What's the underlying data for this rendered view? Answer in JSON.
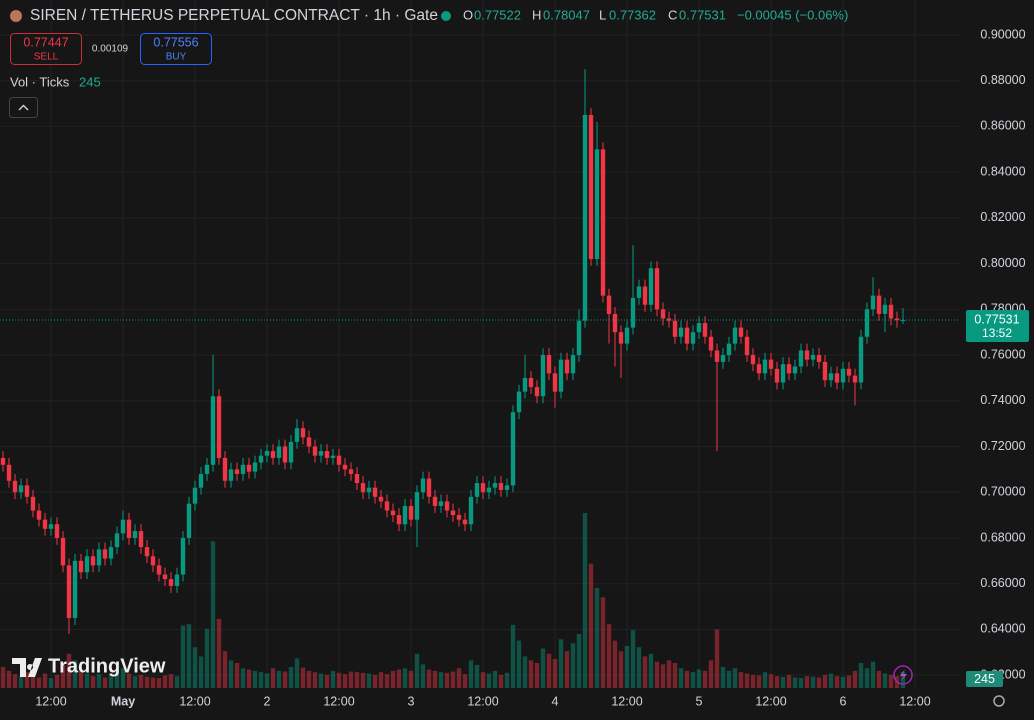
{
  "header": {
    "symbol": "SIREN / TETHERUS PERPETUAL CONTRACT · 1h · Gate",
    "open_key": "O",
    "high_key": "H",
    "low_key": "L",
    "close_key": "C",
    "change": "−0.00045 (−0.06%)"
  },
  "trade": {
    "sell_price": "0.77447",
    "sell": "SELL",
    "spread": "0.00109",
    "buy_price": "0.77556",
    "buy": "BUY"
  },
  "indicator": {
    "name": "Vol · Ticks"
  },
  "watermark": "TradingView",
  "countdown": "13:52",
  "chart_data": {
    "type": "candlestick",
    "up_color": "#089981",
    "down_color": "#f23645",
    "grid": true,
    "ylim": [
      0.6135,
      0.9153
    ],
    "yticks": [
      {
        "value": 0.62,
        "label": "0.62000"
      },
      {
        "value": 0.64,
        "label": "0.64000"
      },
      {
        "value": 0.66,
        "label": "0.66000"
      },
      {
        "value": 0.68,
        "label": "0.68000"
      },
      {
        "value": 0.7,
        "label": "0.70000"
      },
      {
        "value": 0.72,
        "label": "0.72000"
      },
      {
        "value": 0.74,
        "label": "0.74000"
      },
      {
        "value": 0.76,
        "label": "0.76000"
      },
      {
        "value": 0.78,
        "label": "0.78000"
      },
      {
        "value": 0.8,
        "label": "0.80000"
      },
      {
        "value": 0.82,
        "label": "0.82000"
      },
      {
        "value": 0.84,
        "label": "0.84000"
      },
      {
        "value": 0.86,
        "label": "0.86000"
      },
      {
        "value": 0.88,
        "label": "0.88000"
      },
      {
        "value": 0.9,
        "label": "0.90000"
      }
    ],
    "categories": [
      null,
      null,
      null,
      null,
      null,
      null,
      null,
      null,
      "12:00",
      null,
      null,
      null,
      null,
      null,
      null,
      null,
      null,
      null,
      null,
      null,
      "May",
      null,
      null,
      null,
      null,
      null,
      null,
      null,
      null,
      null,
      null,
      null,
      "12:00",
      null,
      null,
      null,
      null,
      null,
      null,
      null,
      null,
      null,
      null,
      null,
      "2",
      null,
      null,
      null,
      null,
      null,
      null,
      null,
      null,
      null,
      null,
      null,
      "12:00",
      null,
      null,
      null,
      null,
      null,
      null,
      null,
      null,
      null,
      null,
      null,
      "3",
      null,
      null,
      null,
      null,
      null,
      null,
      null,
      null,
      null,
      null,
      null,
      "12:00",
      null,
      null,
      null,
      null,
      null,
      null,
      null,
      null,
      null,
      null,
      null,
      "4",
      null,
      null,
      null,
      null,
      null,
      null,
      null,
      null,
      null,
      null,
      null,
      "12:00",
      null,
      null,
      null,
      null,
      null,
      null,
      null,
      null,
      null,
      null,
      null,
      "5",
      null,
      null,
      null,
      null,
      null,
      null,
      null,
      null,
      null,
      null,
      null,
      "12:00",
      null,
      null,
      null,
      null,
      null,
      null,
      null,
      null,
      null,
      null,
      null,
      "6",
      null,
      null,
      null,
      null,
      null,
      null,
      null,
      null,
      null,
      null,
      null,
      "12:00"
    ],
    "open": [
      0.715,
      0.712,
      0.705,
      0.7,
      0.703,
      0.698,
      0.692,
      0.688,
      0.684,
      0.686,
      0.68,
      0.668,
      0.645,
      0.67,
      0.665,
      0.672,
      0.668,
      0.675,
      0.671,
      0.676,
      0.682,
      0.688,
      0.68,
      0.683,
      0.676,
      0.672,
      0.668,
      0.664,
      0.662,
      0.659,
      0.664,
      0.68,
      0.695,
      0.702,
      0.708,
      0.712,
      0.742,
      0.715,
      0.705,
      0.71,
      0.708,
      0.712,
      0.709,
      0.713,
      0.716,
      0.718,
      0.715,
      0.72,
      0.713,
      0.722,
      0.728,
      0.724,
      0.72,
      0.716,
      0.718,
      0.715,
      0.716,
      0.712,
      0.71,
      0.708,
      0.704,
      0.7,
      0.702,
      0.698,
      0.696,
      0.692,
      0.69,
      0.686,
      0.694,
      0.688,
      0.7,
      0.706,
      0.698,
      0.694,
      0.696,
      0.692,
      0.69,
      0.688,
      0.686,
      0.698,
      0.704,
      0.7,
      0.702,
      0.704,
      0.701,
      0.703,
      0.735,
      0.744,
      0.75,
      0.746,
      0.742,
      0.76,
      0.752,
      0.744,
      0.758,
      0.752,
      0.76,
      0.775,
      0.865,
      0.802,
      0.85,
      0.786,
      0.778,
      0.77,
      0.765,
      0.772,
      0.785,
      0.79,
      0.782,
      0.798,
      0.78,
      0.776,
      0.775,
      0.768,
      0.772,
      0.765,
      0.77,
      0.774,
      0.768,
      0.762,
      0.757,
      0.76,
      0.765,
      0.772,
      0.768,
      0.76,
      0.756,
      0.752,
      0.758,
      0.754,
      0.748,
      0.756,
      0.752,
      0.755,
      0.762,
      0.758,
      0.76,
      0.757,
      0.749,
      0.752,
      0.748,
      0.754,
      0.751,
      0.748,
      0.768,
      0.78,
      0.786,
      0.778,
      0.782,
      0.776,
      0.77522,
      null,
      null
    ],
    "high": [
      0.718,
      0.715,
      0.708,
      0.706,
      0.706,
      0.701,
      0.695,
      0.691,
      0.689,
      0.689,
      0.683,
      0.671,
      0.673,
      0.673,
      0.675,
      0.675,
      0.678,
      0.678,
      0.679,
      0.685,
      0.692,
      0.691,
      0.686,
      0.686,
      0.679,
      0.675,
      0.671,
      0.667,
      0.665,
      0.667,
      0.683,
      0.698,
      0.705,
      0.711,
      0.715,
      0.76,
      0.745,
      0.718,
      0.713,
      0.713,
      0.715,
      0.715,
      0.716,
      0.719,
      0.721,
      0.721,
      0.723,
      0.723,
      0.725,
      0.732,
      0.731,
      0.727,
      0.723,
      0.721,
      0.721,
      0.719,
      0.719,
      0.715,
      0.713,
      0.711,
      0.707,
      0.705,
      0.705,
      0.701,
      0.699,
      0.695,
      0.693,
      0.697,
      0.697,
      0.703,
      0.709,
      0.709,
      0.701,
      0.699,
      0.699,
      0.695,
      0.693,
      0.691,
      0.701,
      0.707,
      0.707,
      0.705,
      0.707,
      0.707,
      0.706,
      0.738,
      0.747,
      0.76,
      0.753,
      0.749,
      0.763,
      0.763,
      0.755,
      0.761,
      0.761,
      0.763,
      0.78,
      0.885,
      0.868,
      0.862,
      0.853,
      0.789,
      0.781,
      0.773,
      0.775,
      0.808,
      0.793,
      0.793,
      0.801,
      0.801,
      0.783,
      0.779,
      0.778,
      0.775,
      0.775,
      0.773,
      0.777,
      0.777,
      0.771,
      0.765,
      0.763,
      0.768,
      0.775,
      0.775,
      0.771,
      0.763,
      0.759,
      0.761,
      0.761,
      0.757,
      0.759,
      0.759,
      0.758,
      0.765,
      0.765,
      0.763,
      0.763,
      0.76,
      0.755,
      0.755,
      0.757,
      0.757,
      0.754,
      0.771,
      0.783,
      0.794,
      0.789,
      0.785,
      0.785,
      0.779,
      0.78047,
      null,
      null
    ],
    "low": [
      0.709,
      0.702,
      0.697,
      0.697,
      0.695,
      0.689,
      0.685,
      0.681,
      0.681,
      0.677,
      0.665,
      0.638,
      0.642,
      0.662,
      0.662,
      0.665,
      0.665,
      0.668,
      0.668,
      0.673,
      0.679,
      0.677,
      0.677,
      0.673,
      0.669,
      0.665,
      0.661,
      0.659,
      0.656,
      0.656,
      0.661,
      0.677,
      0.692,
      0.699,
      0.705,
      0.709,
      0.712,
      0.702,
      0.702,
      0.705,
      0.705,
      0.706,
      0.706,
      0.71,
      0.713,
      0.712,
      0.712,
      0.71,
      0.71,
      0.719,
      0.721,
      0.717,
      0.713,
      0.713,
      0.712,
      0.712,
      0.709,
      0.707,
      0.705,
      0.701,
      0.697,
      0.697,
      0.695,
      0.693,
      0.689,
      0.687,
      0.683,
      0.683,
      0.685,
      0.676,
      0.697,
      0.695,
      0.691,
      0.691,
      0.689,
      0.687,
      0.685,
      0.683,
      0.683,
      0.695,
      0.697,
      0.697,
      0.699,
      0.698,
      0.698,
      0.7,
      0.732,
      0.741,
      0.743,
      0.739,
      0.739,
      0.749,
      0.737,
      0.741,
      0.749,
      0.749,
      0.757,
      0.772,
      0.799,
      0.799,
      0.783,
      0.765,
      0.755,
      0.75,
      0.762,
      0.769,
      0.782,
      0.779,
      0.779,
      0.777,
      0.773,
      0.772,
      0.765,
      0.765,
      0.762,
      0.762,
      0.767,
      0.765,
      0.759,
      0.718,
      0.754,
      0.757,
      0.762,
      0.765,
      0.757,
      0.753,
      0.749,
      0.749,
      0.751,
      0.745,
      0.745,
      0.749,
      0.749,
      0.752,
      0.755,
      0.755,
      0.754,
      0.746,
      0.746,
      0.745,
      0.745,
      0.748,
      0.738,
      0.745,
      0.765,
      0.777,
      0.775,
      0.77,
      0.773,
      0.772,
      0.77362,
      null,
      null
    ],
    "close": [
      0.712,
      0.705,
      0.7,
      0.703,
      0.698,
      0.692,
      0.688,
      0.684,
      0.686,
      0.68,
      0.668,
      0.645,
      0.67,
      0.665,
      0.672,
      0.668,
      0.675,
      0.671,
      0.676,
      0.682,
      0.688,
      0.68,
      0.683,
      0.676,
      0.672,
      0.668,
      0.664,
      0.662,
      0.659,
      0.664,
      0.68,
      0.695,
      0.702,
      0.708,
      0.712,
      0.742,
      0.715,
      0.705,
      0.71,
      0.708,
      0.712,
      0.709,
      0.713,
      0.716,
      0.718,
      0.715,
      0.72,
      0.713,
      0.722,
      0.728,
      0.724,
      0.72,
      0.716,
      0.718,
      0.715,
      0.716,
      0.712,
      0.71,
      0.708,
      0.704,
      0.7,
      0.702,
      0.698,
      0.696,
      0.692,
      0.69,
      0.686,
      0.694,
      0.688,
      0.7,
      0.706,
      0.698,
      0.694,
      0.696,
      0.692,
      0.69,
      0.688,
      0.686,
      0.698,
      0.704,
      0.7,
      0.702,
      0.704,
      0.701,
      0.703,
      0.735,
      0.744,
      0.75,
      0.746,
      0.742,
      0.76,
      0.752,
      0.744,
      0.758,
      0.752,
      0.76,
      0.775,
      0.865,
      0.802,
      0.85,
      0.786,
      0.778,
      0.77,
      0.765,
      0.772,
      0.785,
      0.79,
      0.782,
      0.798,
      0.78,
      0.776,
      0.775,
      0.768,
      0.772,
      0.765,
      0.77,
      0.774,
      0.768,
      0.762,
      0.757,
      0.76,
      0.765,
      0.772,
      0.768,
      0.76,
      0.756,
      0.752,
      0.758,
      0.754,
      0.748,
      0.756,
      0.752,
      0.755,
      0.762,
      0.758,
      0.76,
      0.757,
      0.749,
      0.752,
      0.748,
      0.754,
      0.751,
      0.748,
      0.768,
      0.78,
      0.786,
      0.778,
      0.782,
      0.776,
      0.7752,
      0.77531,
      null,
      null
    ],
    "volume": [
      320,
      260,
      210,
      180,
      240,
      190,
      160,
      220,
      150,
      200,
      350,
      520,
      420,
      260,
      220,
      180,
      210,
      160,
      190,
      240,
      300,
      220,
      180,
      200,
      170,
      160,
      150,
      190,
      210,
      180,
      950,
      970,
      620,
      480,
      900,
      2230,
      1050,
      560,
      420,
      380,
      300,
      280,
      260,
      240,
      220,
      300,
      260,
      250,
      320,
      450,
      310,
      260,
      240,
      220,
      200,
      260,
      230,
      210,
      250,
      240,
      230,
      220,
      200,
      240,
      210,
      260,
      280,
      300,
      260,
      520,
      360,
      280,
      260,
      240,
      230,
      250,
      300,
      210,
      420,
      350,
      240,
      220,
      260,
      200,
      230,
      960,
      720,
      480,
      420,
      380,
      600,
      520,
      440,
      740,
      560,
      680,
      820,
      2660,
      1890,
      1520,
      1380,
      970,
      720,
      560,
      640,
      880,
      620,
      480,
      520,
      400,
      360,
      420,
      380,
      300,
      260,
      240,
      280,
      260,
      420,
      890,
      320,
      260,
      300,
      240,
      220,
      200,
      190,
      240,
      210,
      180,
      170,
      200,
      160,
      150,
      180,
      170,
      160,
      200,
      220,
      180,
      170,
      190,
      260,
      380,
      300,
      400,
      260,
      220,
      200,
      180,
      245,
      null,
      null
    ]
  }
}
